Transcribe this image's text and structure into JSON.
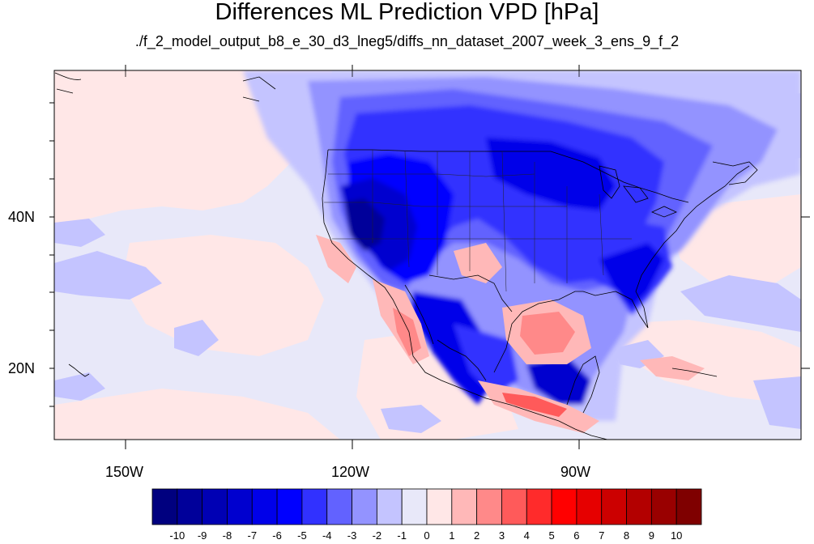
{
  "title": "Differences ML Prediction VPD [hPa]",
  "subtitle": "./f_2_model_output_b8_e_30_d3_lneg5/diffs_nn_dataset_2007_week_3_ens_9_f_2",
  "axes": {
    "lon_labels": [
      "150W",
      "120W",
      "90W"
    ],
    "lat_labels": [
      "40N",
      "20N"
    ]
  },
  "colorbar": {
    "labels": [
      "-10",
      "-9",
      "-8",
      "-7",
      "-6",
      "-5",
      "-4",
      "-3",
      "-2",
      "-1",
      "0",
      "1",
      "2",
      "3",
      "4",
      "5",
      "6",
      "7",
      "8",
      "9",
      "10"
    ],
    "colors": [
      "#00007f",
      "#00009a",
      "#0000b4",
      "#0000cf",
      "#0000e9",
      "#0000ff",
      "#3131ff",
      "#6262ff",
      "#9393ff",
      "#c4c4ff",
      "#e8e8f9",
      "#ffe7e7",
      "#ffb8b8",
      "#ff8989",
      "#ff5a5a",
      "#ff2b2b",
      "#ff0000",
      "#e60000",
      "#cc0000",
      "#b30000",
      "#990000",
      "#7f0000"
    ]
  },
  "colors": {
    "ocean_background": "#e8e8f9",
    "strong_negative": "#0000cf",
    "moderate_negative": "#6262ff",
    "weak_negative": "#9393ff",
    "weak_positive": "#ffe7e7",
    "moderate_positive": "#ffb8b8",
    "strong_positive": "#ff5a5a"
  }
}
